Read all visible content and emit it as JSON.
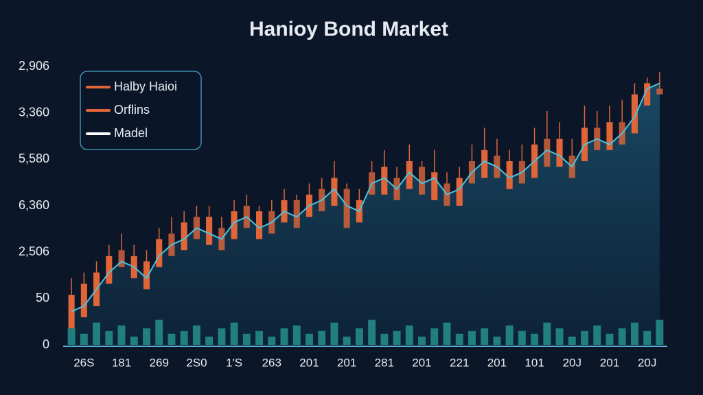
{
  "chart_data": {
    "type": "candlestick",
    "title": "Hanioy Bond Market",
    "categories": [
      "26S",
      null,
      null,
      "181",
      null,
      null,
      "269",
      null,
      null,
      "2S0",
      null,
      null,
      "1′S",
      null,
      null,
      "263",
      null,
      null,
      "201",
      null,
      null,
      "201",
      null,
      null,
      "281",
      null,
      null,
      "201",
      null,
      null,
      "221",
      null,
      null,
      "201",
      null,
      null,
      "101",
      null,
      null,
      "20J",
      null,
      null,
      "201",
      null,
      null,
      "20J",
      null,
      null
    ],
    "y_axis_labels": [
      "2,906",
      "3,360",
      "5,580",
      "6,360",
      "2,506",
      "50",
      "0"
    ],
    "ylim": [
      0,
      100
    ],
    "series": [
      {
        "name": "Halby Haioi",
        "color": "#e0663a",
        "open": [
          6,
          10,
          14,
          22,
          34,
          24,
          20,
          28,
          40,
          34,
          46,
          36,
          42,
          38,
          50,
          38,
          48,
          44,
          52,
          46,
          56,
          50,
          56,
          44,
          62,
          54,
          60,
          56,
          64,
          52,
          58,
          50,
          66,
          60,
          68,
          56,
          66,
          60,
          74,
          64,
          68,
          66,
          78,
          70,
          80,
          76,
          86,
          92
        ],
        "close": [
          18,
          22,
          26,
          32,
          28,
          32,
          30,
          38,
          32,
          44,
          38,
          46,
          34,
          48,
          42,
          48,
          40,
          52,
          42,
          54,
          48,
          60,
          42,
          52,
          54,
          64,
          52,
          66,
          54,
          62,
          50,
          60,
          58,
          70,
          60,
          66,
          58,
          72,
          64,
          74,
          60,
          78,
          70,
          80,
          72,
          90,
          94,
          90
        ]
      },
      {
        "name": "Orflins",
        "color": "#e0663a",
        "values": [
          24,
          26,
          30,
          36,
          40,
          36,
          34,
          42,
          46,
          48,
          50,
          50,
          46,
          52,
          54,
          50,
          52,
          56,
          54,
          58,
          60,
          66,
          58,
          56,
          66,
          70,
          64,
          72,
          66,
          70,
          62,
          64,
          72,
          78,
          74,
          70,
          72,
          78,
          84,
          80,
          74,
          86,
          84,
          86,
          88,
          94,
          96,
          98
        ]
      },
      {
        "name": "Madel",
        "color": "#4cc3e0",
        "legend_color": "#ffffff",
        "values": [
          12,
          14,
          20,
          26,
          30,
          28,
          24,
          32,
          36,
          38,
          42,
          40,
          38,
          44,
          46,
          42,
          44,
          48,
          46,
          50,
          52,
          56,
          50,
          48,
          58,
          60,
          56,
          62,
          58,
          60,
          54,
          56,
          62,
          66,
          64,
          60,
          62,
          66,
          70,
          68,
          64,
          72,
          74,
          72,
          76,
          82,
          92,
          94
        ]
      }
    ],
    "volume": [
      6,
      4,
      8,
      5,
      7,
      3,
      6,
      9,
      4,
      5,
      7,
      3,
      6,
      8,
      4,
      5,
      3,
      6,
      7,
      4,
      5,
      8,
      3,
      6,
      9,
      4,
      5,
      7,
      3,
      6,
      8,
      4,
      5,
      6,
      3,
      7,
      5,
      4,
      8,
      6,
      3,
      5,
      7,
      4,
      6,
      8,
      5,
      9
    ],
    "volume_color": "#2aa6a0"
  }
}
